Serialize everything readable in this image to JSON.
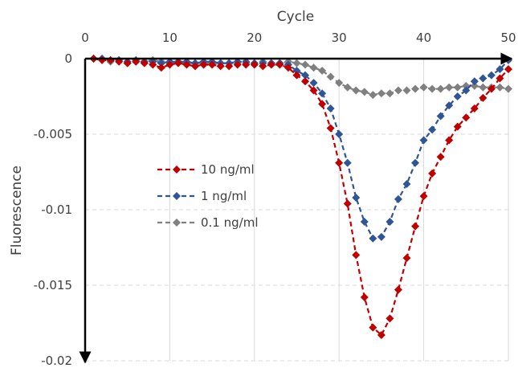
{
  "chart_data": {
    "type": "line",
    "title": "",
    "xlabel": "Cycle",
    "ylabel": "Fluorescence",
    "xlim": [
      0,
      50
    ],
    "ylim": [
      -0.02,
      0
    ],
    "x_ticks": [
      0,
      10,
      20,
      30,
      40,
      50
    ],
    "x_tick_labels": [
      "0",
      "10",
      "20",
      "30",
      "40",
      "50"
    ],
    "y_ticks": [
      0,
      -0.005,
      -0.01,
      -0.015,
      -0.02
    ],
    "y_tick_labels": [
      "0",
      "-0.005",
      "-0.01",
      "-0.015",
      "-0.02"
    ],
    "x_axis_position": "top",
    "grid": true,
    "legend_position": "center-left",
    "series": [
      {
        "name": "10 ng/ml",
        "color": "#c00000",
        "marker": "diamond",
        "line": "dashed",
        "x": [
          1,
          2,
          3,
          4,
          5,
          6,
          7,
          8,
          9,
          10,
          11,
          12,
          13,
          14,
          15,
          16,
          17,
          18,
          19,
          20,
          21,
          22,
          23,
          24,
          25,
          26,
          27,
          28,
          29,
          30,
          31,
          32,
          33,
          34,
          35,
          36,
          37,
          38,
          39,
          40,
          41,
          42,
          43,
          44,
          45,
          46,
          47,
          48,
          49,
          50
        ],
        "y": [
          0,
          -0.0001,
          -0.0001,
          -0.0002,
          -0.0003,
          -0.0002,
          -0.0003,
          -0.0004,
          -0.0006,
          -0.0004,
          -0.0003,
          -0.0004,
          -0.0005,
          -0.0004,
          -0.0004,
          -0.0005,
          -0.0005,
          -0.0004,
          -0.0004,
          -0.0004,
          -0.0005,
          -0.0004,
          -0.0004,
          -0.0006,
          -0.0011,
          -0.0015,
          -0.0021,
          -0.003,
          -0.0046,
          -0.0069,
          -0.0096,
          -0.013,
          -0.0158,
          -0.0178,
          -0.0183,
          -0.0172,
          -0.0153,
          -0.0132,
          -0.0111,
          -0.0091,
          -0.0076,
          -0.0065,
          -0.0054,
          -0.0045,
          -0.0039,
          -0.0033,
          -0.0026,
          -0.002,
          -0.0013,
          -0.0007
        ]
      },
      {
        "name": "1 ng/ml",
        "color": "#2f5597",
        "marker": "diamond",
        "line": "dashed",
        "x": [
          1,
          2,
          3,
          4,
          5,
          6,
          7,
          8,
          9,
          10,
          11,
          12,
          13,
          14,
          15,
          16,
          17,
          18,
          19,
          20,
          21,
          22,
          23,
          24,
          25,
          26,
          27,
          28,
          29,
          30,
          31,
          32,
          33,
          34,
          35,
          36,
          37,
          38,
          39,
          40,
          41,
          42,
          43,
          44,
          45,
          46,
          47,
          48,
          49,
          50
        ],
        "y": [
          0,
          0,
          -0.0001,
          -0.0001,
          -0.0002,
          -0.0001,
          -0.0002,
          -0.0002,
          -0.0003,
          -0.0002,
          -0.0002,
          -0.0002,
          -0.0003,
          -0.0002,
          -0.0002,
          -0.0003,
          -0.0003,
          -0.0002,
          -0.0002,
          -0.0003,
          -0.0003,
          -0.0003,
          -0.0003,
          -0.0004,
          -0.0008,
          -0.0011,
          -0.0016,
          -0.0023,
          -0.0033,
          -0.005,
          -0.0069,
          -0.0092,
          -0.0108,
          -0.0119,
          -0.0118,
          -0.0108,
          -0.0093,
          -0.0083,
          -0.0069,
          -0.0054,
          -0.0047,
          -0.0038,
          -0.0031,
          -0.0025,
          -0.0021,
          -0.0015,
          -0.0013,
          -0.0011,
          -0.0007,
          -0.0001
        ]
      },
      {
        "name": "0.1 ng/ml",
        "color": "#808080",
        "marker": "diamond",
        "line": "dashed",
        "x": [
          1,
          2,
          3,
          4,
          5,
          6,
          7,
          8,
          9,
          10,
          11,
          12,
          13,
          14,
          15,
          16,
          17,
          18,
          19,
          20,
          21,
          22,
          23,
          24,
          25,
          26,
          27,
          28,
          29,
          30,
          31,
          32,
          33,
          34,
          35,
          36,
          37,
          38,
          39,
          40,
          41,
          42,
          43,
          44,
          45,
          46,
          47,
          48,
          49,
          50
        ],
        "y": [
          0,
          0,
          -0.0002,
          -0.0001,
          -0.0003,
          -0.0002,
          -0.0002,
          -0.0001,
          -0.0002,
          -0.0003,
          -0.0002,
          -0.0003,
          -0.0003,
          -0.0003,
          -0.0003,
          -0.0003,
          -0.0003,
          -0.0003,
          -0.0003,
          -0.0003,
          -0.0002,
          -0.0003,
          -0.0003,
          -0.0002,
          -0.0003,
          -0.0004,
          -0.0006,
          -0.0008,
          -0.0012,
          -0.0016,
          -0.0019,
          -0.0021,
          -0.0022,
          -0.0024,
          -0.0023,
          -0.0023,
          -0.0021,
          -0.0021,
          -0.002,
          -0.0019,
          -0.002,
          -0.002,
          -0.0019,
          -0.0019,
          -0.0018,
          -0.0018,
          -0.0019,
          -0.0019,
          -0.0019,
          -0.002
        ]
      }
    ]
  }
}
